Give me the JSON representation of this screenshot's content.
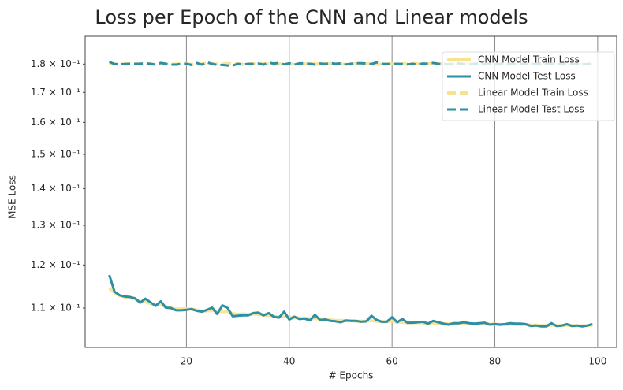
{
  "chart_data": {
    "type": "line",
    "title": "Loss per Epoch of the CNN and Linear models",
    "xlabel": "# Epochs",
    "ylabel": "MSE Loss",
    "yscale": "log",
    "grid": "x",
    "legend": "upper right",
    "x": [
      5,
      6,
      7,
      8,
      9,
      10,
      11,
      12,
      13,
      14,
      15,
      16,
      17,
      18,
      19,
      20,
      21,
      22,
      23,
      24,
      25,
      26,
      27,
      28,
      29,
      30,
      31,
      32,
      33,
      34,
      35,
      36,
      37,
      38,
      39,
      40,
      41,
      42,
      43,
      44,
      45,
      46,
      47,
      48,
      49,
      50,
      51,
      52,
      53,
      54,
      55,
      56,
      57,
      58,
      59,
      60,
      61,
      62,
      63,
      64,
      65,
      66,
      67,
      68,
      69,
      70,
      71,
      72,
      73,
      74,
      75,
      76,
      77,
      78,
      79,
      80,
      81,
      82,
      83,
      84,
      85,
      86,
      87,
      88,
      89,
      90,
      91,
      92,
      93,
      94,
      95,
      96,
      97,
      98,
      99
    ],
    "xlim": [
      0.3,
      103.7
    ],
    "xticks": [
      20,
      40,
      60,
      80,
      100
    ],
    "ylim": [
      0.1016,
      0.1904
    ],
    "yticks": [
      {
        "value": 0.11,
        "label": "1.1 × 10⁻¹"
      },
      {
        "value": 0.12,
        "label": "1.2 × 10⁻¹"
      },
      {
        "value": 0.13,
        "label": "1.3 × 10⁻¹"
      },
      {
        "value": 0.14,
        "label": "1.4 × 10⁻¹"
      },
      {
        "value": 0.15,
        "label": "1.5 × 10⁻¹"
      },
      {
        "value": 0.16,
        "label": "1.6 × 10⁻¹"
      },
      {
        "value": 0.17,
        "label": "1.7 × 10⁻¹"
      },
      {
        "value": 0.18,
        "label": "1.8 × 10⁻¹"
      }
    ],
    "series": [
      {
        "name": "CNN Model Train Loss",
        "color": "#f7e28f",
        "linestyle": "solid",
        "values": [
          0.1145,
          0.1135,
          0.1128,
          0.1125,
          0.1123,
          0.112,
          0.1115,
          0.1115,
          0.111,
          0.1108,
          0.1108,
          0.1103,
          0.11,
          0.1098,
          0.1098,
          0.1099,
          0.1097,
          0.1096,
          0.1093,
          0.1094,
          0.1095,
          0.1093,
          0.1092,
          0.1093,
          0.1088,
          0.1086,
          0.1087,
          0.1086,
          0.1087,
          0.1086,
          0.1085,
          0.1084,
          0.1082,
          0.1081,
          0.1082,
          0.108,
          0.1079,
          0.1078,
          0.1078,
          0.1077,
          0.1077,
          0.1076,
          0.1075,
          0.1074,
          0.1073,
          0.1073,
          0.1072,
          0.1072,
          0.1071,
          0.1071,
          0.1071,
          0.1073,
          0.1071,
          0.107,
          0.107,
          0.1071,
          0.1069,
          0.1069,
          0.1068,
          0.1068,
          0.1068,
          0.1068,
          0.1067,
          0.1067,
          0.1066,
          0.1066,
          0.1065,
          0.1066,
          0.1066,
          0.1066,
          0.1066,
          0.1065,
          0.1065,
          0.1066,
          0.1065,
          0.1065,
          0.1064,
          0.1064,
          0.1065,
          0.1064,
          0.1064,
          0.1064,
          0.1063,
          0.1063,
          0.1062,
          0.1062,
          0.1063,
          0.1062,
          0.1062,
          0.1063,
          0.1062,
          0.1062,
          0.1061,
          0.1062,
          0.1063
        ]
      },
      {
        "name": "CNN Model Test Loss",
        "color": "#2e8fa3",
        "linestyle": "solid",
        "values": [
          0.1176,
          0.1137,
          0.1129,
          0.1126,
          0.1125,
          0.1122,
          0.1112,
          0.1121,
          0.1113,
          0.1105,
          0.1115,
          0.1101,
          0.11,
          0.1095,
          0.1095,
          0.1096,
          0.1098,
          0.1094,
          0.1092,
          0.1096,
          0.1101,
          0.1087,
          0.1106,
          0.11,
          0.1082,
          0.1083,
          0.1084,
          0.1084,
          0.1089,
          0.109,
          0.1084,
          0.1089,
          0.1081,
          0.1079,
          0.1092,
          0.1075,
          0.1081,
          0.1076,
          0.1077,
          0.1073,
          0.1085,
          0.1074,
          0.1075,
          0.1072,
          0.1071,
          0.1069,
          0.1073,
          0.1072,
          0.1072,
          0.107,
          0.1071,
          0.1083,
          0.1074,
          0.107,
          0.107,
          0.108,
          0.1069,
          0.1076,
          0.1068,
          0.1068,
          0.1069,
          0.107,
          0.1066,
          0.1072,
          0.1069,
          0.1066,
          0.1064,
          0.1067,
          0.1067,
          0.1069,
          0.1067,
          0.1066,
          0.1067,
          0.1068,
          0.1064,
          0.1065,
          0.1064,
          0.1065,
          0.1067,
          0.1066,
          0.1066,
          0.1065,
          0.1061,
          0.1062,
          0.106,
          0.106,
          0.1067,
          0.1061,
          0.1062,
          0.1065,
          0.1061,
          0.1062,
          0.106,
          0.1062,
          0.1065
        ]
      },
      {
        "name": "Linear Model Train Loss",
        "color": "#f7e28f",
        "linestyle": "dashed",
        "values": [
          0.1803,
          0.18,
          0.1799,
          0.18,
          0.1801,
          0.18,
          0.1801,
          0.1802,
          0.18,
          0.1799,
          0.1801,
          0.18,
          0.1799,
          0.18,
          0.18,
          0.1801,
          0.1799,
          0.1801,
          0.18,
          0.1802,
          0.1801,
          0.18,
          0.1801,
          0.1802,
          0.18,
          0.1801,
          0.1799,
          0.18,
          0.1801,
          0.18,
          0.1801,
          0.18,
          0.1799,
          0.18,
          0.18,
          0.1801,
          0.1799,
          0.1801,
          0.18,
          0.1802,
          0.1801,
          0.18,
          0.1801,
          0.1802,
          0.18,
          0.1801,
          0.1799,
          0.18,
          0.1801,
          0.18,
          0.1801,
          0.18,
          0.1799,
          0.18,
          0.18,
          0.1801,
          0.1799,
          0.1801,
          0.18,
          0.1802,
          0.1801,
          0.18,
          0.1801,
          0.1802,
          0.18,
          0.1801,
          0.1799,
          0.18,
          0.1801,
          0.18,
          0.1801,
          0.18,
          0.1799,
          0.18,
          0.18,
          0.1801,
          0.1799,
          0.1801,
          0.18,
          0.1802,
          0.1801,
          0.18,
          0.1801,
          0.1802,
          0.18,
          0.1801,
          0.1799,
          0.18,
          0.1801,
          0.18,
          0.1801,
          0.18,
          0.1799,
          0.18,
          0.18
        ]
      },
      {
        "name": "Linear Model Test Loss",
        "color": "#2e8fa3",
        "linestyle": "dashed",
        "values": [
          0.1808,
          0.18,
          0.1799,
          0.18,
          0.1801,
          0.1801,
          0.1801,
          0.1803,
          0.1801,
          0.1798,
          0.1804,
          0.1801,
          0.1798,
          0.1798,
          0.1801,
          0.1801,
          0.1797,
          0.1804,
          0.1798,
          0.1806,
          0.1801,
          0.1797,
          0.1797,
          0.1795,
          0.1795,
          0.1801,
          0.1798,
          0.1801,
          0.18,
          0.1802,
          0.1798,
          0.1805,
          0.1802,
          0.1804,
          0.1799,
          0.1803,
          0.1798,
          0.1803,
          0.1802,
          0.1801,
          0.1798,
          0.1802,
          0.18,
          0.1804,
          0.1801,
          0.1803,
          0.1799,
          0.1801,
          0.1803,
          0.1803,
          0.1802,
          0.18,
          0.1806,
          0.1801,
          0.18,
          0.18,
          0.1801,
          0.18,
          0.1799,
          0.1801,
          0.1798,
          0.1802,
          0.1801,
          0.1804,
          0.1801,
          0.18,
          0.1799,
          0.1801,
          0.1803,
          0.18,
          0.1799,
          0.1801,
          0.1802,
          0.18,
          0.1801,
          0.1799,
          0.18,
          0.1802,
          0.1801,
          0.18,
          0.1801,
          0.18,
          0.1799,
          0.1801,
          0.1802,
          0.18,
          0.1801,
          0.1799,
          0.18,
          0.1801,
          0.18,
          0.1801,
          0.1799,
          0.18,
          0.1801
        ]
      }
    ]
  }
}
